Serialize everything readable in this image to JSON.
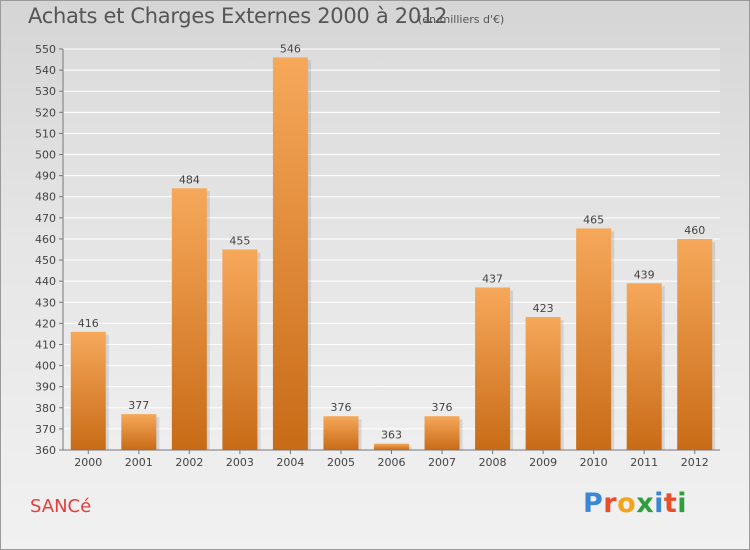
{
  "header": {
    "title": "Achats et Charges Externes 2000 à 2012",
    "subtitle": "(en milliers d'€)"
  },
  "footer": {
    "commune": "SANCé",
    "brand": "Proxiti",
    "brand_colors": [
      "#3a87d6",
      "#e94d2a",
      "#f2a51a",
      "#2e9f3d",
      "#3a87d6",
      "#e94d2a",
      "#2e9f3d"
    ]
  },
  "chart_data": {
    "type": "bar",
    "title": "Achats et Charges Externes 2000 à 2012",
    "unit": "en milliers d'€",
    "categories": [
      "2000",
      "2001",
      "2002",
      "2003",
      "2004",
      "2005",
      "2006",
      "2007",
      "2008",
      "2009",
      "2010",
      "2011",
      "2012"
    ],
    "values": [
      416,
      377,
      484,
      455,
      546,
      376,
      363,
      376,
      437,
      423,
      465,
      439,
      460
    ],
    "ylim": [
      360,
      550
    ],
    "ytick_step": 10,
    "grid": true,
    "bar_color_top": "#f6a85a",
    "bar_color_bottom": "#c86b17"
  }
}
